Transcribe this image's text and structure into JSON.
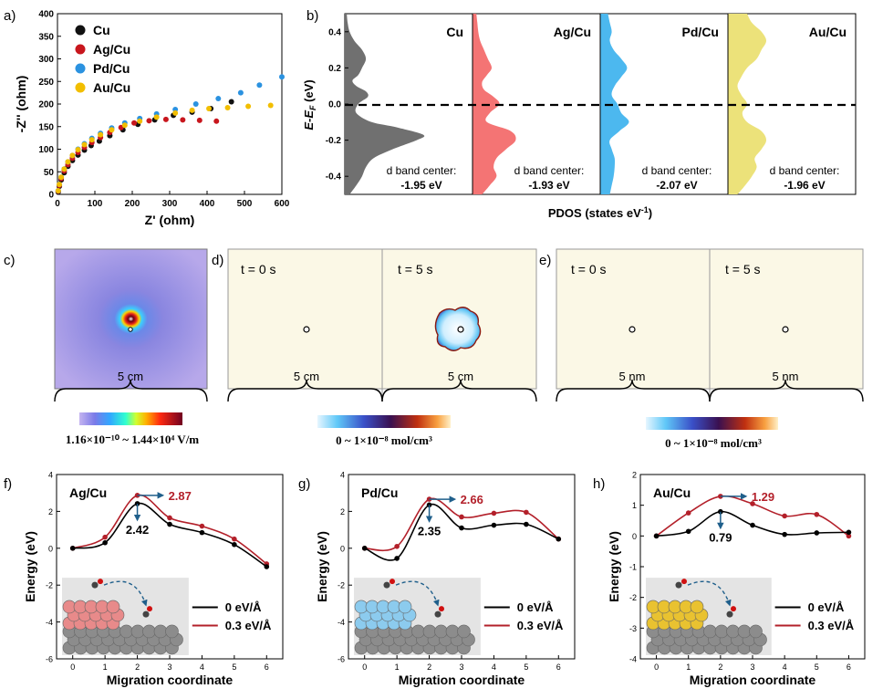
{
  "panel_letters": {
    "a": "a)",
    "b": "b)",
    "c": "c)",
    "d": "d)",
    "e": "e)",
    "f": "f)",
    "g": "g)",
    "h": "h)"
  },
  "colors": {
    "Cu": "#111111",
    "Ag/Cu": "#c8161d",
    "Pd/Cu": "#2b92e0",
    "Au/Cu": "#f2be00"
  },
  "chart_data": [
    {
      "id": "a",
      "type": "scatter",
      "xlabel": "Z' (ohm)",
      "ylabel": "-Z'' (ohm)",
      "xlim": [
        0,
        600
      ],
      "ylim": [
        0,
        400
      ],
      "xticks": [
        "0",
        "100",
        "200",
        "300",
        "400",
        "500",
        "600"
      ],
      "yticks": [
        "0",
        "50",
        "100",
        "150",
        "200",
        "250",
        "300",
        "350",
        "400"
      ],
      "legend": "top-left",
      "series": [
        {
          "name": "Cu",
          "color": "#111111",
          "x": [
            2,
            5,
            10,
            18,
            28,
            40,
            55,
            72,
            90,
            112,
            140,
            175,
            215,
            260,
            310,
            360,
            410,
            465
          ],
          "y": [
            5,
            18,
            32,
            48,
            62,
            75,
            87,
            98,
            108,
            118,
            130,
            143,
            155,
            165,
            175,
            182,
            190,
            205
          ]
        },
        {
          "name": "Ag/Cu",
          "color": "#c8161d",
          "x": [
            2,
            5,
            10,
            18,
            28,
            40,
            55,
            72,
            92,
            115,
            140,
            170,
            205,
            245,
            290,
            335,
            380,
            425
          ],
          "y": [
            7,
            20,
            35,
            52,
            66,
            80,
            93,
            104,
            115,
            126,
            137,
            148,
            158,
            163,
            166,
            165,
            164,
            162
          ]
        },
        {
          "name": "Pd/Cu",
          "color": "#2b92e0",
          "x": [
            2,
            5,
            10,
            18,
            28,
            40,
            55,
            72,
            92,
            115,
            145,
            180,
            220,
            265,
            315,
            370,
            430,
            490,
            540,
            600
          ],
          "y": [
            8,
            22,
            38,
            56,
            72,
            86,
            100,
            112,
            124,
            135,
            147,
            158,
            168,
            178,
            188,
            200,
            212,
            225,
            242,
            260
          ]
        },
        {
          "name": "Au/Cu",
          "color": "#f2be00",
          "x": [
            2,
            5,
            10,
            18,
            28,
            40,
            55,
            72,
            92,
            115,
            145,
            180,
            220,
            265,
            315,
            360,
            405,
            455,
            510,
            570
          ],
          "y": [
            8,
            22,
            38,
            56,
            72,
            86,
            99,
            110,
            121,
            132,
            143,
            153,
            162,
            171,
            180,
            186,
            190,
            192,
            195,
            197
          ]
        }
      ]
    },
    {
      "id": "b",
      "type": "area",
      "xlabel": "PDOS (states eV-1)",
      "ylabel": "E-EF (eV)",
      "ylim": [
        -0.5,
        0.5
      ],
      "yticks": [
        "0.4",
        "0.2",
        "0.0",
        "-0.2",
        "-0.4"
      ],
      "subpanels": [
        {
          "name": "Cu",
          "color": "#707070",
          "annotation": [
            "d band center:",
            "-1.95 eV"
          ],
          "e": [
            -0.5,
            -0.45,
            -0.4,
            -0.35,
            -0.3,
            -0.25,
            -0.2,
            -0.17,
            -0.13,
            -0.1,
            -0.05,
            0.0,
            0.04,
            0.07,
            0.1,
            0.13,
            0.16,
            0.2,
            0.25,
            0.3,
            0.35,
            0.4,
            0.45,
            0.5
          ],
          "v": [
            0.05,
            0.12,
            0.18,
            0.22,
            0.3,
            0.5,
            0.75,
            0.82,
            0.55,
            0.28,
            0.12,
            0.14,
            0.24,
            0.22,
            0.12,
            0.08,
            0.14,
            0.18,
            0.22,
            0.18,
            0.1,
            0.05,
            0.03,
            0.02
          ]
        },
        {
          "name": "Ag/Cu",
          "color": "#f47474",
          "annotation": [
            "d band center:",
            "-1.93 eV"
          ],
          "e": [
            -0.5,
            -0.45,
            -0.4,
            -0.35,
            -0.3,
            -0.25,
            -0.2,
            -0.15,
            -0.1,
            -0.05,
            0.0,
            0.04,
            0.08,
            0.12,
            0.16,
            0.2,
            0.25,
            0.3,
            0.35,
            0.4,
            0.45,
            0.5
          ],
          "v": [
            0.1,
            0.18,
            0.25,
            0.22,
            0.25,
            0.35,
            0.45,
            0.4,
            0.15,
            0.18,
            0.28,
            0.22,
            0.12,
            0.1,
            0.15,
            0.2,
            0.16,
            0.12,
            0.08,
            0.06,
            0.05,
            0.04
          ]
        },
        {
          "name": "Pd/Cu",
          "color": "#4cb8ef",
          "annotation": [
            "d band center:",
            "-2.07 eV"
          ],
          "e": [
            -0.5,
            -0.45,
            -0.4,
            -0.35,
            -0.3,
            -0.25,
            -0.2,
            -0.15,
            -0.1,
            -0.05,
            0.0,
            0.05,
            0.1,
            0.15,
            0.2,
            0.25,
            0.3,
            0.35,
            0.4,
            0.45,
            0.5
          ],
          "v": [
            0.1,
            0.12,
            0.14,
            0.15,
            0.15,
            0.12,
            0.1,
            0.2,
            0.3,
            0.22,
            0.18,
            0.12,
            0.15,
            0.22,
            0.28,
            0.22,
            0.14,
            0.1,
            0.12,
            0.1,
            0.08
          ]
        },
        {
          "name": "Au/Cu",
          "color": "#ece27a",
          "annotation": [
            "d band center:",
            "-1.96 eV"
          ],
          "e": [
            -0.5,
            -0.45,
            -0.4,
            -0.35,
            -0.3,
            -0.25,
            -0.2,
            -0.15,
            -0.1,
            -0.05,
            0.0,
            0.05,
            0.1,
            0.15,
            0.2,
            0.25,
            0.3,
            0.35,
            0.4,
            0.45,
            0.5
          ],
          "v": [
            0.1,
            0.18,
            0.25,
            0.3,
            0.28,
            0.35,
            0.4,
            0.35,
            0.2,
            0.15,
            0.2,
            0.14,
            0.1,
            0.14,
            0.2,
            0.3,
            0.35,
            0.4,
            0.35,
            0.25,
            0.2
          ]
        }
      ]
    },
    {
      "id": "f",
      "type": "line",
      "title": "Ag/Cu",
      "xlabel": "Migration coordinate",
      "ylabel": "Energy (eV)",
      "xlim": [
        -0.5,
        6.5
      ],
      "ylim": [
        -6,
        4
      ],
      "xticks": [
        "0",
        "1",
        "2",
        "3",
        "4",
        "5",
        "6"
      ],
      "yticks": [
        "4",
        "2",
        "0",
        "-2",
        "-4",
        "-6"
      ],
      "series": [
        {
          "name": "0    eV/Å",
          "color": "#000000",
          "x": [
            0,
            1,
            2,
            3,
            4,
            5,
            6
          ],
          "y": [
            0,
            0.3,
            2.42,
            1.3,
            0.85,
            0.2,
            -1.0
          ]
        },
        {
          "name": "0.3 eV/Å",
          "color": "#b3202a",
          "x": [
            0,
            1,
            2,
            3,
            4,
            5,
            6
          ],
          "y": [
            0,
            0.6,
            2.87,
            1.65,
            1.2,
            0.5,
            -0.85
          ]
        }
      ],
      "annotations": {
        "black": "2.42",
        "red": "2.87"
      }
    },
    {
      "id": "g",
      "type": "line",
      "title": "Pd/Cu",
      "xlabel": "Migration coordinate",
      "ylabel": "Energy (eV)",
      "xlim": [
        -0.5,
        6.5
      ],
      "ylim": [
        -6,
        4
      ],
      "xticks": [
        "0",
        "1",
        "2",
        "3",
        "4",
        "5",
        "6"
      ],
      "yticks": [
        "4",
        "2",
        "0",
        "-2",
        "-4",
        "-6"
      ],
      "series": [
        {
          "name": "0    eV/Å",
          "color": "#000000",
          "x": [
            0,
            1,
            2,
            3,
            4,
            5,
            6
          ],
          "y": [
            0,
            -0.55,
            2.35,
            1.1,
            1.25,
            1.3,
            0.5
          ]
        },
        {
          "name": "0.3 eV/Å",
          "color": "#b3202a",
          "x": [
            0,
            1,
            2,
            3,
            4,
            5,
            6
          ],
          "y": [
            0,
            0.1,
            2.66,
            1.7,
            1.9,
            1.95,
            0.5
          ]
        }
      ],
      "annotations": {
        "black": "2.35",
        "red": "2.66"
      }
    },
    {
      "id": "h",
      "type": "line",
      "title": "Au/Cu",
      "xlabel": "Migration coordinate",
      "ylabel": "Energy (eV)",
      "xlim": [
        -0.5,
        6.5
      ],
      "ylim": [
        -4,
        2
      ],
      "xticks": [
        "0",
        "1",
        "2",
        "3",
        "4",
        "5",
        "6"
      ],
      "yticks": [
        "2",
        "1",
        "0",
        "-1",
        "-2",
        "-3",
        "-4"
      ],
      "series": [
        {
          "name": "0    eV/Å",
          "color": "#000000",
          "x": [
            0,
            1,
            2,
            3,
            4,
            5,
            6
          ],
          "y": [
            0,
            0.15,
            0.79,
            0.35,
            0.05,
            0.1,
            0.12
          ]
        },
        {
          "name": "0.3 eV/Å",
          "color": "#b3202a",
          "x": [
            0,
            1,
            2,
            3,
            4,
            5,
            6
          ],
          "y": [
            0,
            0.75,
            1.29,
            1.05,
            0.65,
            0.7,
            0.0
          ]
        }
      ],
      "annotations": {
        "black": "0.79",
        "red": "1.29"
      }
    }
  ],
  "sim": {
    "c": {
      "scale": "5 cm",
      "colorbar": "1.16×10⁻¹⁰ ~ 1.44×10⁴ V/m"
    },
    "d": {
      "t0": "t = 0 s",
      "t5": "t = 5 s",
      "scale_left": "5 cm",
      "scale_right": "5 cm",
      "colorbar": "0 ~ 1×10⁻⁸ mol/cm³"
    },
    "e": {
      "t0": "t = 0 s",
      "t5": "t = 5 s",
      "scale_left": "5 nm",
      "scale_right": "5 nm",
      "colorbar": "0 ~ 1×10⁻⁸ mol/cm³"
    }
  }
}
